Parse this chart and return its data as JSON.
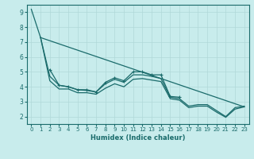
{
  "title": "",
  "xlabel": "Humidex (Indice chaleur)",
  "ylabel": "",
  "bg_color": "#c8ecec",
  "grid_color": "#b0d8d8",
  "line_color": "#1a6b6b",
  "xlim": [
    -0.5,
    23.5
  ],
  "ylim": [
    1.5,
    9.5
  ],
  "yticks": [
    2,
    3,
    4,
    5,
    6,
    7,
    8,
    9
  ],
  "xticks": [
    0,
    1,
    2,
    3,
    4,
    5,
    6,
    7,
    8,
    9,
    10,
    11,
    12,
    13,
    14,
    15,
    16,
    17,
    18,
    19,
    20,
    21,
    22,
    23
  ],
  "series": {
    "line1": {
      "x": [
        0,
        1
      ],
      "y": [
        9.2,
        7.3
      ]
    },
    "line2_markers": {
      "x": [
        2,
        3,
        4,
        5,
        6,
        7,
        8,
        9,
        10,
        11,
        12,
        13,
        14,
        15,
        16
      ],
      "y": [
        5.15,
        4.1,
        4.0,
        3.8,
        3.8,
        3.65,
        4.3,
        4.6,
        4.4,
        5.0,
        5.0,
        4.8,
        4.8,
        3.35,
        3.3
      ]
    },
    "line3": {
      "x": [
        1,
        2,
        3,
        4,
        5,
        6,
        7,
        8,
        9,
        10,
        11,
        12,
        13,
        14,
        15,
        16,
        17,
        18,
        19,
        20,
        21,
        22,
        23
      ],
      "y": [
        7.3,
        4.7,
        4.1,
        4.0,
        3.8,
        3.75,
        3.65,
        4.2,
        4.5,
        4.3,
        4.8,
        4.8,
        4.7,
        4.55,
        3.3,
        3.2,
        2.7,
        2.8,
        2.8,
        2.4,
        2.0,
        2.6,
        2.7
      ]
    },
    "line4": {
      "x": [
        1,
        2,
        3,
        4,
        5,
        6,
        7,
        8,
        9,
        10,
        11,
        12,
        13,
        14,
        15,
        16,
        17,
        18,
        19,
        20,
        21,
        22,
        23
      ],
      "y": [
        7.3,
        4.4,
        3.85,
        3.85,
        3.6,
        3.6,
        3.5,
        3.9,
        4.2,
        4.0,
        4.5,
        4.55,
        4.45,
        4.35,
        3.2,
        3.1,
        2.6,
        2.7,
        2.7,
        2.3,
        1.95,
        2.5,
        2.65
      ]
    },
    "line5_straight": {
      "x": [
        1,
        23
      ],
      "y": [
        7.3,
        2.65
      ]
    }
  }
}
